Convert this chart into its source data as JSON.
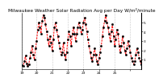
{
  "title": "Milwaukee Weather Solar Radiation Avg per Day W/m²/minute",
  "line_color": "#ff0000",
  "marker_color": "#000000",
  "background_color": "#ffffff",
  "y_values": [
    0.4,
    0.3,
    0.8,
    1.4,
    0.6,
    0.3,
    0.5,
    1.2,
    1.8,
    2.5,
    1.5,
    1.0,
    2.2,
    3.0,
    4.2,
    5.0,
    4.5,
    3.8,
    5.2,
    5.8,
    5.5,
    4.8,
    4.0,
    3.2,
    2.5,
    3.5,
    2.8,
    2.0,
    3.2,
    4.5,
    5.0,
    4.2,
    3.5,
    2.8,
    2.2,
    1.5,
    1.8,
    2.8,
    1.5,
    1.0,
    1.8,
    3.2,
    4.0,
    3.5,
    2.5,
    3.8,
    4.5,
    3.8,
    3.0,
    3.8,
    4.5,
    5.0,
    4.5,
    3.8,
    4.2,
    5.0,
    5.5,
    4.8,
    4.0,
    3.2,
    2.5,
    1.8,
    1.2,
    0.8,
    1.5,
    2.2,
    1.5,
    0.8,
    0.5,
    1.2,
    1.8,
    2.5,
    3.5,
    4.5,
    5.2,
    5.8,
    5.0,
    4.5,
    3.8,
    3.0,
    4.0,
    4.8,
    3.5,
    2.5,
    3.2,
    4.2,
    3.8,
    2.5,
    1.8,
    2.5,
    3.5,
    2.8,
    2.0,
    1.5,
    2.2,
    3.0,
    2.5,
    1.8,
    1.2,
    0.8,
    0.5,
    0.8,
    1.5,
    2.2,
    1.8,
    1.2,
    0.8,
    0.5
  ],
  "x_tick_positions_frac": [
    0.0,
    0.13,
    0.26,
    0.39,
    0.52,
    0.65,
    0.78,
    0.91
  ],
  "x_tick_labels": [
    "19",
    "20",
    "21",
    "22",
    "23",
    "24",
    "25",
    ""
  ],
  "ylim": [
    0,
    6
  ],
  "ytick_values": [
    1,
    2,
    3,
    4,
    5
  ],
  "grid_color": "#999999",
  "title_fontsize": 4.2,
  "tick_fontsize": 3.2
}
